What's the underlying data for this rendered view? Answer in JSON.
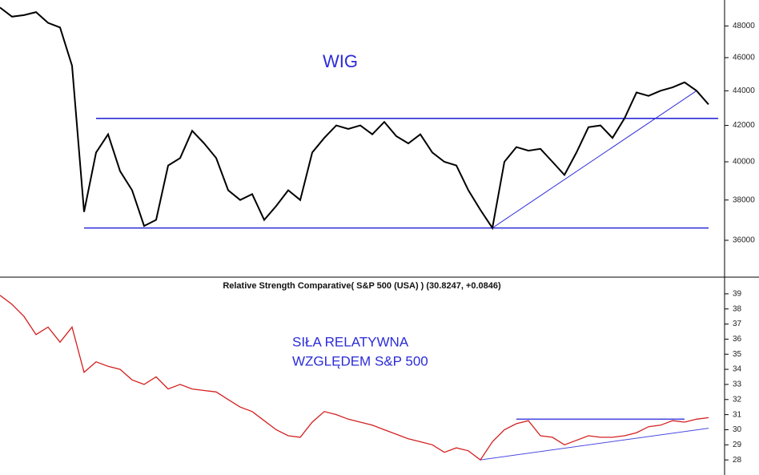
{
  "chart_data": [
    {
      "type": "line",
      "title": "WIG",
      "log_scale": true,
      "color": "#000000",
      "values": [
        49200,
        48600,
        48700,
        48900,
        48200,
        47900,
        45500,
        37400,
        40500,
        41500,
        39500,
        38500,
        36700,
        37000,
        39800,
        40200,
        41700,
        41000,
        40200,
        38500,
        38000,
        38300,
        37000,
        37700,
        38500,
        38000,
        40500,
        41300,
        42000,
        41800,
        42000,
        41500,
        42200,
        41400,
        41000,
        41500,
        40500,
        40000,
        39800,
        38500,
        37500,
        36600,
        40000,
        40800,
        40600,
        40700,
        40000,
        39300,
        40500,
        41900,
        42000,
        41300,
        42400,
        43900,
        43700,
        44000,
        44200,
        44500,
        44000,
        43200
      ],
      "ylim": [
        34300,
        49700
      ],
      "yticks": [
        36000,
        38000,
        40000,
        42000,
        44000,
        46000,
        48000
      ],
      "hlines": [
        {
          "value": 42400,
          "from": 8,
          "to": 60
        },
        {
          "value": 36600,
          "from": 7,
          "to": 59
        }
      ],
      "hline_color": "#2b2bd8",
      "trendlines": [
        {
          "from": [
            41,
            36600
          ],
          "to": [
            58,
            44000
          ]
        }
      ]
    },
    {
      "type": "line",
      "title": "SIŁA RELATYWNA",
      "subtitle": "WZGLĘDEM S&P 500",
      "header": "Relative Strength Comparative( S&P 500 (USA) ) (30.8247, +0.0846)",
      "log_scale": false,
      "color": "#d42020",
      "values": [
        38.9,
        38.3,
        37.5,
        36.3,
        36.8,
        35.8,
        36.8,
        33.8,
        34.5,
        34.2,
        34.0,
        33.3,
        33.0,
        33.5,
        32.7,
        33.0,
        32.7,
        32.6,
        32.5,
        32.0,
        31.5,
        31.2,
        30.6,
        30.0,
        29.6,
        29.5,
        30.5,
        31.2,
        31.0,
        30.7,
        30.5,
        30.3,
        30.0,
        29.7,
        29.4,
        29.2,
        29.0,
        28.5,
        28.8,
        28.6,
        28.0,
        29.2,
        30.0,
        30.4,
        30.6,
        29.6,
        29.5,
        29.0,
        29.3,
        29.6,
        29.5,
        29.5,
        29.6,
        29.8,
        30.2,
        30.3,
        30.6,
        30.5,
        30.7,
        30.8
      ],
      "ylim": [
        27,
        40
      ],
      "yticks": [
        28,
        29,
        30,
        31,
        32,
        33,
        34,
        35,
        36,
        37,
        38,
        39
      ],
      "hlines": [
        {
          "value": 30.7,
          "from": 43,
          "to": 57
        }
      ],
      "hline_color": "#4a4ae0",
      "trendlines": [
        {
          "from": [
            40,
            28.0
          ],
          "to": [
            59,
            30.1
          ]
        }
      ]
    }
  ]
}
